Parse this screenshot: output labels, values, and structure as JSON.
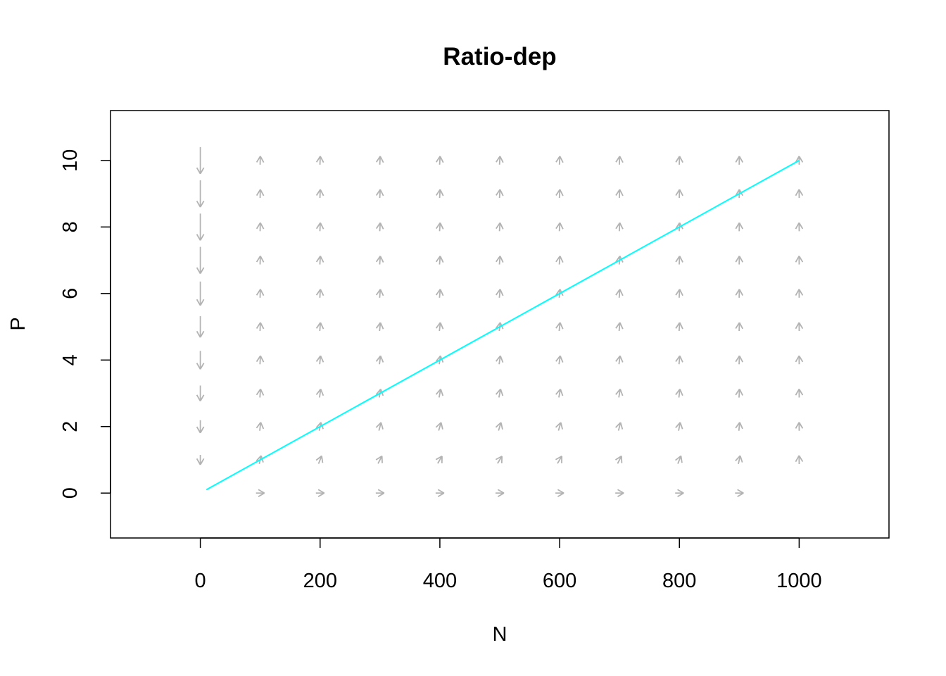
{
  "chart_data": {
    "type": "vector-field",
    "title": "Ratio-dep",
    "xlabel": "N",
    "ylabel": "P",
    "xlim": [
      -150,
      1150
    ],
    "ylim": [
      -1.35,
      11.5
    ],
    "x_ticks": [
      0,
      200,
      400,
      600,
      800,
      1000
    ],
    "y_ticks": [
      0,
      2,
      4,
      6,
      8,
      10
    ],
    "grid": false,
    "arrow_color": "#b3b3b3",
    "line_color": "#00ffff",
    "field": {
      "x": [
        0,
        100,
        200,
        300,
        400,
        500,
        600,
        700,
        800,
        900,
        1000
      ],
      "y": [
        0,
        1,
        2,
        3,
        4,
        5,
        6,
        7,
        8,
        9,
        10
      ]
    },
    "series": [
      {
        "x": [
          10,
          1000
        ],
        "y": [
          0.1,
          10
        ]
      }
    ]
  }
}
